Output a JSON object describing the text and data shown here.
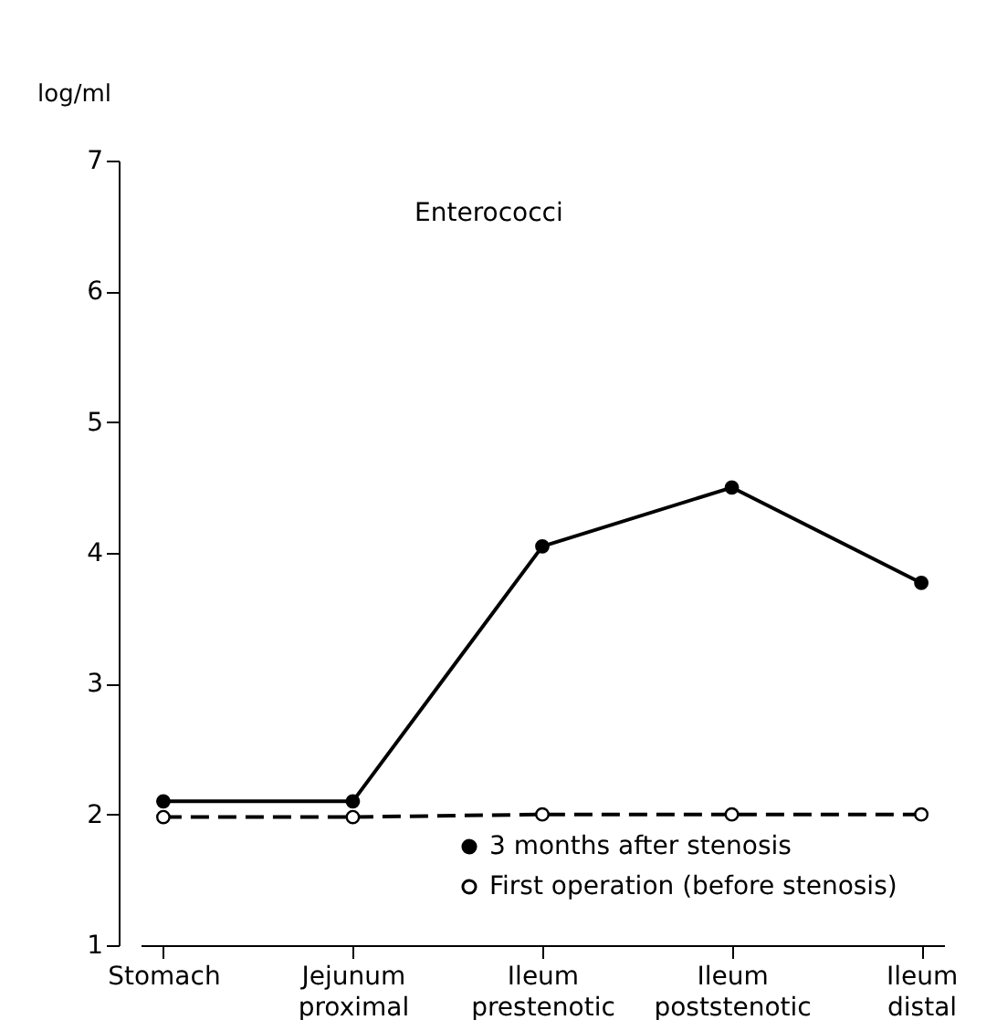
{
  "chart_data": {
    "type": "line",
    "title": "Enterococci",
    "ylabel": "log/ml",
    "categories": [
      "Stomach",
      "Jejunum proximal",
      "Ileum prestenotic",
      "Ileum poststenotic",
      "Ileum distal"
    ],
    "series": [
      {
        "name": "3 months after stenosis",
        "color": "#000000",
        "line_style": "solid",
        "values": [
          2.1,
          2.1,
          4.05,
          4.5,
          3.77
        ]
      },
      {
        "name": "First operation (before stenosis)",
        "color": "#000000",
        "line_style": "dashed",
        "values": [
          1.98,
          1.98,
          2.0,
          2.0,
          2.0
        ]
      }
    ],
    "ylim": [
      1,
      7
    ],
    "yticks": [
      1,
      2,
      3,
      4,
      5,
      6,
      7
    ],
    "marker": "circle",
    "grid": false,
    "legend": "bottom right"
  }
}
